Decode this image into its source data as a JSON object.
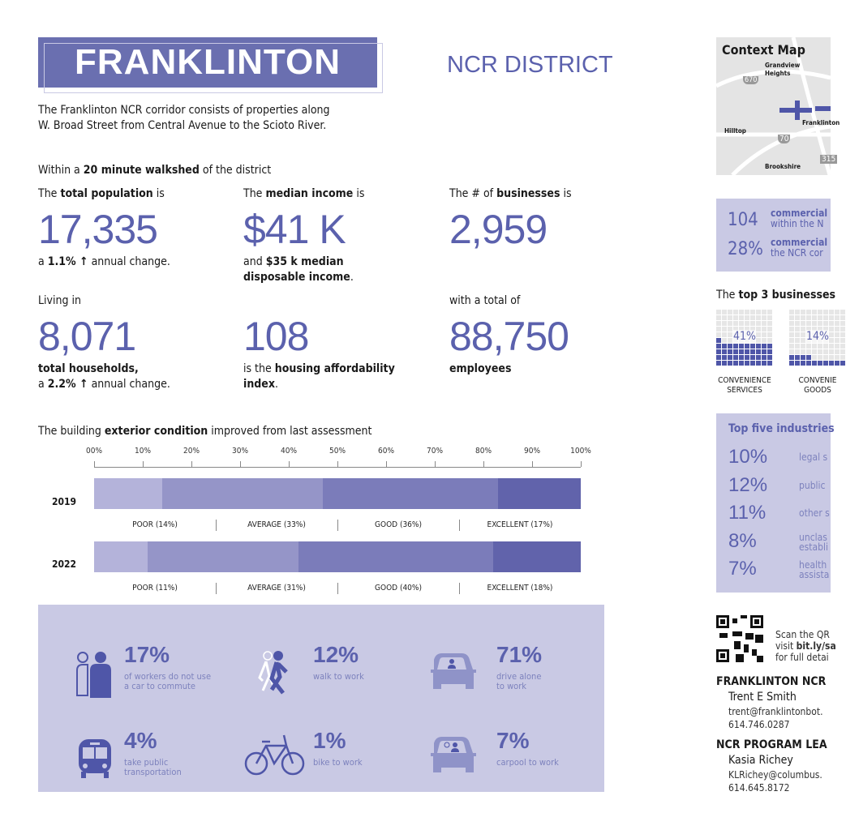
{
  "header": {
    "title": "FRANKLINTON",
    "district": "NCR DISTRICT",
    "description_line1": "The Franklinton NCR corridor consists of properties along",
    "description_line2": "W. Broad Street from Central Avenue to the Scioto River."
  },
  "walkshed": {
    "pre": "Within a ",
    "bold": "20 minute walkshed",
    "post": "  of the district"
  },
  "stats": {
    "population": {
      "pre": "The ",
      "bold": "total population",
      "post": " is",
      "value": "17,335",
      "sub_pre": "a ",
      "sub_bold": "1.1% ↑",
      "sub_post": " annual change."
    },
    "income": {
      "pre": "The ",
      "bold": "median income",
      "post": " is",
      "value": "$41 K",
      "sub_line1_pre": "and ",
      "sub_line1_bold": "$35 k median",
      "sub_line2_bold": "disposable income",
      "sub_line2_post": "."
    },
    "businesses": {
      "pre": "The # of ",
      "bold": "businesses",
      "post": " is",
      "value": "2,959"
    },
    "households": {
      "label": "Living in",
      "value": "8,071",
      "sub_line1_bold": "total households,",
      "sub_line2_pre": "a ",
      "sub_line2_bold": "2.2% ↑",
      "sub_line2_post": " annual change."
    },
    "affordability": {
      "value": "108",
      "sub_pre": "is the ",
      "sub_bold": "housing affordability",
      "sub_line2_bold": "index",
      "sub_line2_post": "."
    },
    "employees": {
      "label": "with a total of",
      "value": "88,750",
      "sub_bold": "employees"
    }
  },
  "condition": {
    "pre": "The building ",
    "bold": "exterior condition",
    "post": " improved from last assessment"
  },
  "chart_data": {
    "type": "bar",
    "stacked": true,
    "orientation": "horizontal",
    "title": "The building exterior condition improved from last assessment",
    "categories": [
      "2019",
      "2022"
    ],
    "xlim": [
      0,
      100
    ],
    "ticks": [
      "00%",
      "10%",
      "20%",
      "30%",
      "40%",
      "50%",
      "60%",
      "70%",
      "80%",
      "90%",
      "100%"
    ],
    "series": [
      {
        "name": "POOR",
        "values": [
          14,
          11
        ],
        "color": "#b4b3da"
      },
      {
        "name": "AVERAGE",
        "values": [
          33,
          31
        ],
        "color": "#9595c8"
      },
      {
        "name": "GOOD",
        "values": [
          36,
          40
        ],
        "color": "#7b7cba"
      },
      {
        "name": "EXCELLENT",
        "values": [
          17,
          18
        ],
        "color": "#6163ab"
      }
    ],
    "labels": [
      [
        "POOR (14%)",
        "AVERAGE (33%)",
        "GOOD (36%)",
        "EXCELLENT (17%)"
      ],
      [
        "POOR (11%)",
        "AVERAGE (31%)",
        "GOOD (40%)",
        "EXCELLENT (18%)"
      ]
    ]
  },
  "transport": [
    {
      "value": "17%",
      "text1": "of workers do not use",
      "text2": "a car to commute",
      "icon": "people-icon"
    },
    {
      "value": "12%",
      "text1": "walk to work",
      "text2": "",
      "icon": "walking-icon"
    },
    {
      "value": "71%",
      "text1": "drive alone",
      "text2": "to work",
      "icon": "car-icon"
    },
    {
      "value": "4%",
      "text1": "take public",
      "text2": "transportation",
      "icon": "bus-icon"
    },
    {
      "value": "1%",
      "text1": "bike to work",
      "text2": "",
      "icon": "bicycle-icon"
    },
    {
      "value": "7%",
      "text1": "carpool to work",
      "text2": "",
      "icon": "carpool-icon"
    }
  ],
  "context_map": {
    "title": "Context Map",
    "labels": [
      "Grandview",
      "Heights",
      "Hilltop",
      "Franklinton",
      "Brookshire"
    ],
    "shields": [
      "670",
      "70",
      "315"
    ]
  },
  "commercial": [
    {
      "value": "104",
      "line1": "commercial",
      "line2": "within the N"
    },
    {
      "value": "28%",
      "line1": "commercial",
      "line2": "the NCR cor"
    }
  ],
  "top_businesses": {
    "pre": "The ",
    "bold": "top 3 businesses",
    "items": [
      {
        "pct": 41,
        "label": "41%",
        "name1": "CONVENIENCE",
        "name2": "SERVICES"
      },
      {
        "pct": 14,
        "label": "14%",
        "name1": "CONVENIE",
        "name2": "GOODS"
      }
    ]
  },
  "industries": {
    "title": "Top five industries",
    "items": [
      {
        "value": "10%",
        "l1": "legal s",
        "l2": ""
      },
      {
        "value": "12%",
        "l1": "public",
        "l2": ""
      },
      {
        "value": "11%",
        "l1": "other s",
        "l2": ""
      },
      {
        "value": "8%",
        "l1": "unclas",
        "l2": "establi"
      },
      {
        "value": "7%",
        "l1": "health",
        "l2": "assista"
      }
    ]
  },
  "qr": {
    "line1": "Scan the QR",
    "line2_pre": "visit ",
    "line2_bold": "bit.ly/sa",
    "line3": "for full detai"
  },
  "contacts": [
    {
      "org": "FRANKLINTON NCR",
      "name": "Trent E Smith",
      "email": "trent@franklintonbot.",
      "phone": "614.746.0287"
    },
    {
      "org": "NCR PROGRAM LEA",
      "name": "Kasia Richey",
      "email": "KLRichey@columbus.",
      "phone": "614.645.8172"
    }
  ],
  "colors": {
    "accent": "#5b61ad",
    "header": "#6a6fb0",
    "panel": "#c9c9e4"
  }
}
